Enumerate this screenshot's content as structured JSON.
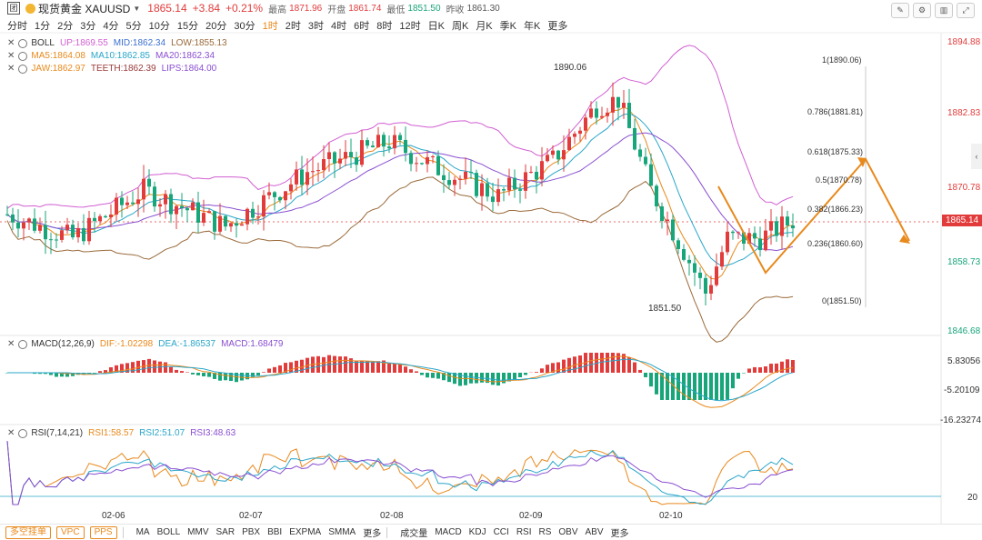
{
  "header": {
    "logo": "团",
    "name": "现货黄金 XAUUSD",
    "price": "1865.14",
    "change": "+3.84",
    "change_pct": "+0.21%",
    "high_label": "最高",
    "high": "1871.96",
    "open_label": "开盘",
    "open": "1861.74",
    "low_label": "最低",
    "low": "1851.50",
    "prev_label": "昨收",
    "prev": "1861.30"
  },
  "timeframes": [
    "分时",
    "1分",
    "2分",
    "3分",
    "4分",
    "5分",
    "10分",
    "15分",
    "20分",
    "30分",
    "1时",
    "2时",
    "3时",
    "4时",
    "6时",
    "8时",
    "12时",
    "日K",
    "周K",
    "月K",
    "季K",
    "年K",
    "更多"
  ],
  "active_timeframe": "1时",
  "indicators": {
    "boll": {
      "name": "BOLL",
      "up": "UP:1869.55",
      "mid": "MID:1862.34",
      "low": "LOW:1855.13"
    },
    "ma": {
      "ma5": "MA5:1864.08",
      "ma10": "MA10:1862.85",
      "ma20": "MA20:1862.34"
    },
    "alligator": {
      "jaw": "JAW:1862.97",
      "teeth": "TEETH:1862.39",
      "lips": "LIPS:1864.00"
    },
    "macd": {
      "name": "MACD(12,26,9)",
      "dif": "DIF:-1.02298",
      "dea": "DEA:-1.86537",
      "macd": "MACD:1.68479"
    },
    "rsi": {
      "name": "RSI(7,14,21)",
      "rsi1": "RSI1:58.57",
      "rsi2": "RSI2:51.07",
      "rsi3": "RSI3:48.63"
    }
  },
  "price_axis": {
    "ticks": [
      "1894.88",
      "1882.83",
      "1870.78",
      "1858.73",
      "1846.68"
    ],
    "current": "1865.14"
  },
  "macd_axis": [
    "5.83056",
    "-5.20109",
    "-16.23274"
  ],
  "rsi_axis": [
    "20"
  ],
  "dates": [
    "02-06",
    "02-07",
    "02-08",
    "02-09",
    "02-10"
  ],
  "annotations": {
    "high": "1890.06",
    "low": "1851.50"
  },
  "fibonacci": [
    "1(1890.06)",
    "0.786(1881.81)",
    "0.618(1875.33)",
    "0.5(1870.78)",
    "0.382(1866.23)",
    "0.236(1860.60)",
    "0(1851.50)"
  ],
  "bottom_left": [
    "多空挂单",
    "VPC",
    "PPS"
  ],
  "bottom_main": [
    "MA",
    "BOLL",
    "MMV",
    "SAR",
    "PBX",
    "BBI",
    "EXPMA",
    "SMMA",
    "更多"
  ],
  "bottom_sub": [
    "成交量",
    "MACD",
    "KDJ",
    "CCI",
    "RSI",
    "RS",
    "OBV",
    "ABV",
    "更多"
  ],
  "colors": {
    "up": "#e23b3b",
    "down": "#17a57a",
    "accent": "#e8891c",
    "boll_up": "#d15fd1",
    "boll_mid": "#3b6fd1",
    "boll_low": "#9a6a3a"
  }
}
